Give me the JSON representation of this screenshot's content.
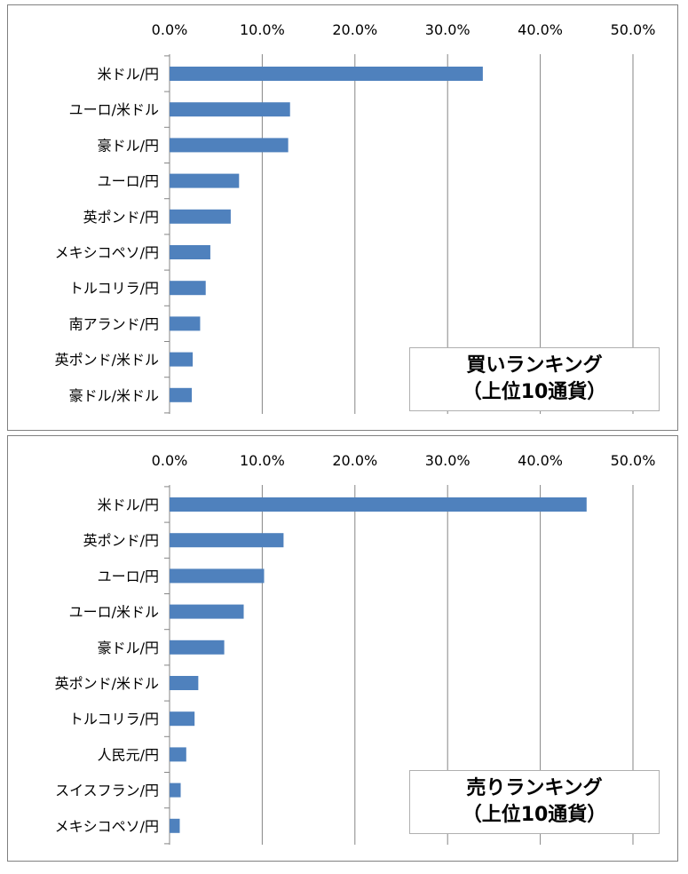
{
  "chart_data": [
    {
      "type": "bar",
      "orientation": "horizontal",
      "title_line1": "買いランキング",
      "title_line2": "（上位10通貨）",
      "categories": [
        "米ドル/円",
        "ユーロ/米ドル",
        "豪ドル/円",
        "ユーロ/円",
        "英ポンド/円",
        "メキシコペソ/円",
        "トルコリラ/円",
        "南アランド/円",
        "英ポンド/米ドル",
        "豪ドル/米ドル"
      ],
      "values": [
        33.8,
        13.0,
        12.8,
        7.5,
        6.6,
        4.4,
        3.9,
        3.3,
        2.5,
        2.4
      ],
      "x_ticks": [
        "0.0%",
        "10.0%",
        "20.0%",
        "30.0%",
        "40.0%",
        "50.0%"
      ],
      "xlim": [
        0,
        50
      ],
      "bar_color": "#4f81bd",
      "grid": true,
      "axis_position": "top"
    },
    {
      "type": "bar",
      "orientation": "horizontal",
      "title_line1": "売りランキング",
      "title_line2": "（上位10通貨）",
      "categories": [
        "米ドル/円",
        "英ポンド/円",
        "ユーロ/円",
        "ユーロ/米ドル",
        "豪ドル/円",
        "英ポンド/米ドル",
        "トルコリラ/円",
        "人民元/円",
        "スイスフラン/円",
        "メキシコペソ/円"
      ],
      "values": [
        45.0,
        12.3,
        10.2,
        8.0,
        5.9,
        3.1,
        2.7,
        1.8,
        1.2,
        1.1
      ],
      "x_ticks": [
        "0.0%",
        "10.0%",
        "20.0%",
        "30.0%",
        "40.0%",
        "50.0%"
      ],
      "xlim": [
        0,
        50
      ],
      "bar_color": "#4f81bd",
      "grid": true,
      "axis_position": "top"
    }
  ]
}
